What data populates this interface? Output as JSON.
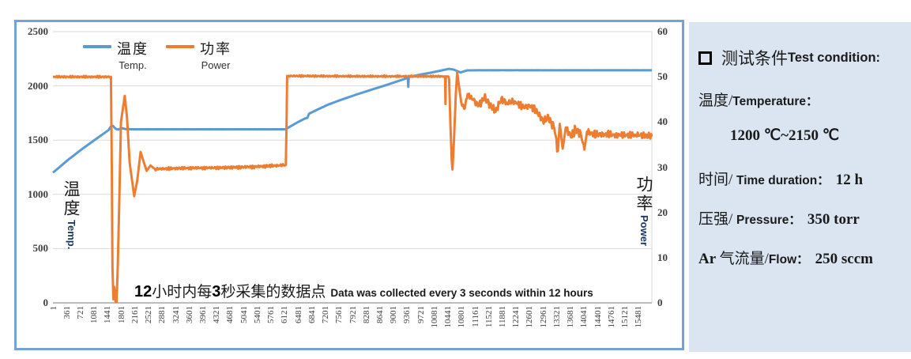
{
  "chart": {
    "legend": [
      {
        "zh": "温度",
        "en": "Temp."
      },
      {
        "zh": "功率",
        "en": "Power"
      }
    ],
    "left_axis": {
      "title_zh": "温度",
      "title_en": "Temp.",
      "ticks": [
        "0",
        "500",
        "1000",
        "1500",
        "2000",
        "2500"
      ]
    },
    "right_axis": {
      "title_zh": "功率",
      "title_en": "Power",
      "ticks": [
        "0",
        "10",
        "20",
        "30",
        "40",
        "50",
        "60"
      ]
    },
    "x_axis": {
      "ticks": [
        "1",
        "361",
        "721",
        "1081",
        "1441",
        "1801",
        "2161",
        "2521",
        "2881",
        "3241",
        "3601",
        "3961",
        "4321",
        "4681",
        "5041",
        "5401",
        "5761",
        "6121",
        "6481",
        "6841",
        "7201",
        "7561",
        "7921",
        "8281",
        "8641",
        "9001",
        "9361",
        "9721",
        "10081",
        "10441",
        "10801",
        "11161",
        "11521",
        "11881",
        "12241",
        "12601",
        "12961",
        "13321",
        "13681",
        "14041",
        "14401",
        "14761",
        "15121",
        "15481"
      ]
    },
    "annotation": {
      "num1": "12",
      "zh1": "小时内每",
      "num2": "3",
      "zh2": "秒采集的数据点",
      "en": "Data was collected every 3 seconds within 12 hours"
    }
  },
  "panel": {
    "title_zh": "测试条件",
    "title_en": "Test condition:",
    "lines": [
      {
        "prefix": "",
        "zh": "温度/",
        "en": "Temperature：",
        "value": ""
      },
      {
        "prefix": "",
        "zh": "",
        "en": "",
        "value": "1200 ℃~2150 ℃"
      },
      {
        "prefix": "",
        "zh": "时间/ ",
        "en": "Time duration：",
        "value": "12 h"
      },
      {
        "prefix": "",
        "zh": "压强/ ",
        "en": "Pressure：",
        "value": "350 torr"
      },
      {
        "prefix": "Ar ",
        "zh": "气流量/",
        "en": "Flow：",
        "value": "250 sccm"
      }
    ]
  },
  "chart_data": {
    "type": "line",
    "title": "",
    "x_range": [
      1,
      15840
    ],
    "x_tick_interval": 360,
    "grid": true,
    "legend_position": "top-left-inside",
    "colors": {
      "temperature": "#5B9BD5",
      "power": "#ED7D31",
      "gridline": "#D9D9D9",
      "axis_line": "#A6A6A6",
      "box_border": "#74A2D8",
      "panel_bg": "#DBE5F1"
    },
    "series": [
      {
        "name": "温度 Temp.",
        "axis": "left",
        "color": "#5B9BD5",
        "ylim": [
          0,
          2500
        ],
        "points": [
          [
            1,
            1200,
            0
          ],
          [
            400,
            1318,
            0
          ],
          [
            800,
            1425,
            0
          ],
          [
            1200,
            1525,
            0
          ],
          [
            1470,
            1592,
            0
          ],
          [
            1540,
            1628,
            0
          ],
          [
            1590,
            1631,
            0
          ],
          [
            1660,
            1604,
            0
          ],
          [
            1730,
            1597,
            0
          ],
          [
            1810,
            1611,
            0
          ],
          [
            1920,
            1602,
            0
          ],
          [
            2100,
            1600,
            0.8
          ],
          [
            6150,
            1600,
            0
          ],
          [
            6260,
            1622,
            0
          ],
          [
            6460,
            1662,
            0
          ],
          [
            6650,
            1697,
            0
          ],
          [
            6730,
            1706,
            0
          ],
          [
            6775,
            1744,
            0
          ],
          [
            7000,
            1782,
            0
          ],
          [
            7300,
            1830,
            0
          ],
          [
            7600,
            1869,
            0
          ],
          [
            8000,
            1917,
            0
          ],
          [
            8400,
            1962,
            0
          ],
          [
            8800,
            2006,
            0
          ],
          [
            9200,
            2052,
            0
          ],
          [
            9365,
            2072,
            0
          ],
          [
            9385,
            2078,
            0
          ],
          [
            9398,
            1992,
            0
          ],
          [
            9412,
            2082,
            0
          ],
          [
            9700,
            2103,
            0
          ],
          [
            10000,
            2122,
            0
          ],
          [
            10250,
            2140,
            0
          ],
          [
            10470,
            2157,
            0
          ],
          [
            10600,
            2150,
            0
          ],
          [
            10780,
            2124,
            0
          ],
          [
            10960,
            2143,
            0
          ],
          [
            11200,
            2144,
            0.6
          ],
          [
            15840,
            2144,
            0
          ]
        ]
      },
      {
        "name": "功率 Power",
        "axis": "right",
        "color": "#ED7D31",
        "ylim": [
          0,
          60
        ],
        "points": [
          [
            1,
            50,
            0.25
          ],
          [
            1535,
            50,
            0
          ],
          [
            1558,
            30,
            0
          ],
          [
            1575,
            8,
            0
          ],
          [
            1600,
            0.8,
            0
          ],
          [
            1625,
            3.5,
            0
          ],
          [
            1655,
            0.3,
            0
          ],
          [
            1685,
            0.2,
            0
          ],
          [
            1715,
            8,
            0
          ],
          [
            1760,
            24,
            0
          ],
          [
            1800,
            40,
            0
          ],
          [
            1900,
            45.8,
            0
          ],
          [
            1960,
            41,
            0
          ],
          [
            2030,
            31,
            0
          ],
          [
            2150,
            23.6,
            0
          ],
          [
            2230,
            27,
            0
          ],
          [
            2320,
            33.4,
            0
          ],
          [
            2400,
            31.2,
            0
          ],
          [
            2480,
            29.2,
            0
          ],
          [
            2580,
            30.4,
            0
          ],
          [
            2700,
            29.6,
            0.35
          ],
          [
            3400,
            29.8,
            0.35
          ],
          [
            4400,
            29.9,
            0.4
          ],
          [
            5300,
            30.1,
            0.4
          ],
          [
            5950,
            30.4,
            0.35
          ],
          [
            6160,
            30.5,
            0
          ],
          [
            6180,
            40,
            0
          ],
          [
            6195,
            50.2,
            0
          ],
          [
            6240,
            50.2,
            0.22
          ],
          [
            8200,
            50.1,
            0.22
          ],
          [
            10355,
            50.1,
            0
          ],
          [
            10372,
            50.1,
            0
          ],
          [
            10382,
            44,
            0
          ],
          [
            10392,
            50.1,
            0
          ],
          [
            10455,
            50.1,
            0
          ],
          [
            10478,
            49.5,
            0
          ],
          [
            10515,
            39,
            0
          ],
          [
            10548,
            31.5,
            0
          ],
          [
            10568,
            29.5,
            0
          ],
          [
            10610,
            36.5,
            0
          ],
          [
            10655,
            46,
            0
          ],
          [
            10692,
            51,
            0
          ],
          [
            10735,
            48.2,
            0
          ],
          [
            10800,
            44.3,
            0.8
          ],
          [
            10880,
            42.9,
            0.9
          ],
          [
            10968,
            46.2,
            1
          ],
          [
            11120,
            44.9,
            1
          ],
          [
            11260,
            43.6,
            1
          ],
          [
            11410,
            45.4,
            1
          ],
          [
            11560,
            43.9,
            1
          ],
          [
            11710,
            42.3,
            1
          ],
          [
            11860,
            45.2,
            1
          ],
          [
            12010,
            44.3,
            1
          ],
          [
            12210,
            44.6,
            1
          ],
          [
            12410,
            43.2,
            1
          ],
          [
            12610,
            43.6,
            1
          ],
          [
            12810,
            42.1,
            1
          ],
          [
            12960,
            40.4,
            1.2
          ],
          [
            13110,
            40.8,
            1.3
          ],
          [
            13260,
            38.6,
            1.5
          ],
          [
            13355,
            33.6,
            0
          ],
          [
            13405,
            39.6,
            0
          ],
          [
            13482,
            34.1,
            0
          ],
          [
            13565,
            38.8,
            1.4
          ],
          [
            13705,
            36.6,
            1.4
          ],
          [
            13825,
            38.2,
            1.2
          ],
          [
            13955,
            37.7,
            1.1
          ],
          [
            14055,
            33.9,
            0
          ],
          [
            14125,
            37.9,
            1
          ],
          [
            14305,
            37.2,
            1
          ],
          [
            14605,
            37.3,
            0.9
          ],
          [
            15005,
            37,
            0.9
          ],
          [
            15405,
            37.2,
            0.9
          ],
          [
            15840,
            36.8,
            0
          ]
        ]
      }
    ],
    "annotation_text": "12小时内每3秒采集的数据点 Data was collected every 3 seconds within 12 hours",
    "conditions_text": "测试条件 Test condition: 温度/Temperature：1200 ℃~2150 ℃; 时间/Time duration：12 h; 压强/Pressure：350 torr; Ar 气流量/Flow：250 sccm"
  }
}
